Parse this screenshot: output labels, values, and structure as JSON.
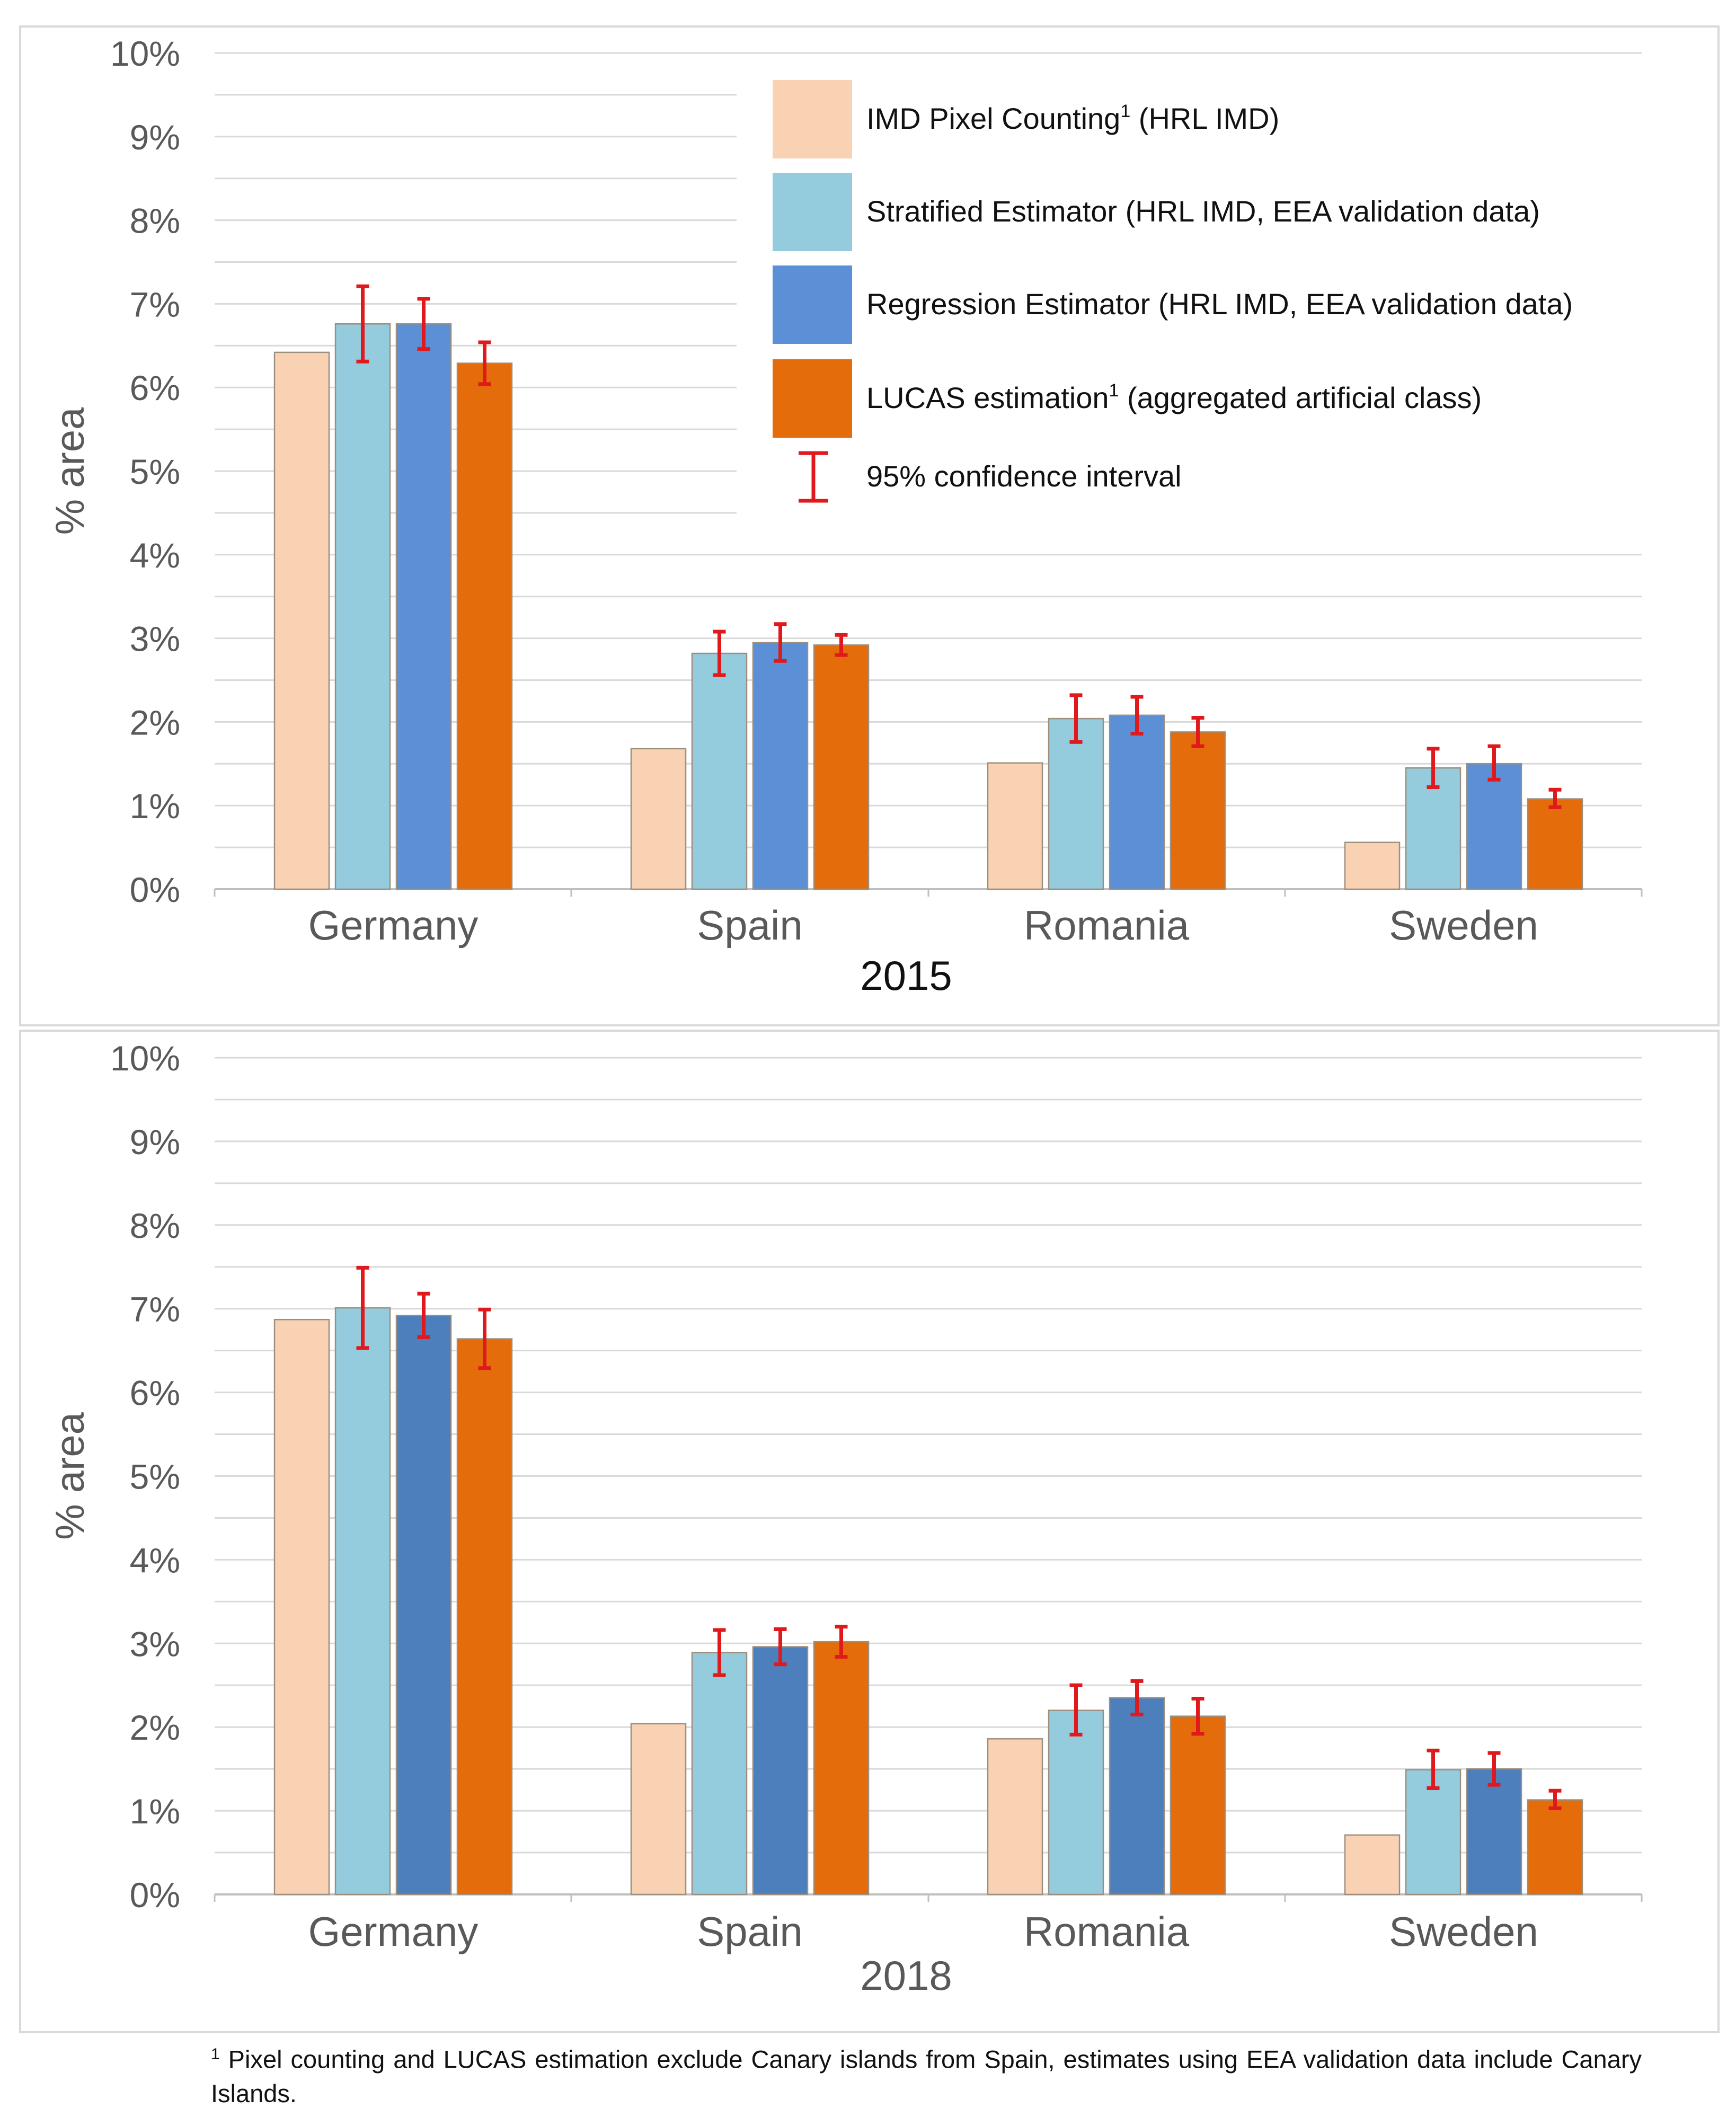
{
  "colors": {
    "imd": "#f9d2b3",
    "stratified": "#94cbdd",
    "regression_2015": "#5b8fd6",
    "regression_2018": "#4d7fbd",
    "lucas": "#e46c0a",
    "ci": "#e0191d",
    "grid": "#d9d9d9",
    "text": "#595959"
  },
  "legend": {
    "items": [
      {
        "label": "IMD Pixel Counting",
        "sup": "1",
        "suffix": " (HRL IMD)",
        "key": "imd"
      },
      {
        "label": "Stratified Estimator (HRL IMD, EEA validation data)",
        "sup": "",
        "suffix": "",
        "key": "stratified"
      },
      {
        "label": "Regression Estimator (HRL IMD, EEA validation data)",
        "sup": "",
        "suffix": "",
        "key": "regression_2015"
      },
      {
        "label": "LUCAS estimation",
        "sup": "1",
        "suffix": " (aggregated artificial class)",
        "key": "lucas"
      },
      {
        "label": "95% confidence interval",
        "sup": "",
        "suffix": "",
        "key": "ci"
      }
    ]
  },
  "chart_data": [
    {
      "type": "bar",
      "title": "2015",
      "ylabel": "% area",
      "ylim": [
        0,
        10
      ],
      "yticks": [
        "0%",
        "1%",
        "2%",
        "3%",
        "4%",
        "5%",
        "6%",
        "7%",
        "8%",
        "9%",
        "10%"
      ],
      "categories": [
        "Germany",
        "Spain",
        "Romania",
        "Sweden"
      ],
      "series": [
        {
          "name": "IMD Pixel Counting (HRL IMD)",
          "color_key": "imd",
          "values": [
            6.42,
            1.68,
            1.51,
            0.56
          ],
          "ci": null
        },
        {
          "name": "Stratified Estimator (HRL IMD, EEA validation data)",
          "color_key": "stratified",
          "values": [
            6.76,
            2.82,
            2.04,
            1.45
          ],
          "ci": [
            [
              6.31,
              7.21
            ],
            [
              2.56,
              3.08
            ],
            [
              1.76,
              2.32
            ],
            [
              1.22,
              1.68
            ]
          ]
        },
        {
          "name": "Regression Estimator (HRL IMD, EEA validation data)",
          "color_key": "regression_2015",
          "values": [
            6.76,
            2.95,
            2.08,
            1.5
          ],
          "ci": [
            [
              6.46,
              7.06
            ],
            [
              2.73,
              3.17
            ],
            [
              1.86,
              2.3
            ],
            [
              1.31,
              1.71
            ]
          ]
        },
        {
          "name": "LUCAS estimation (aggregated artificial class)",
          "color_key": "lucas",
          "values": [
            6.29,
            2.92,
            1.88,
            1.08
          ],
          "ci": [
            [
              6.04,
              6.54
            ],
            [
              2.8,
              3.04
            ],
            [
              1.71,
              2.05
            ],
            [
              0.98,
              1.19
            ]
          ]
        }
      ]
    },
    {
      "type": "bar",
      "title": "2018",
      "ylabel": "% area",
      "ylim": [
        0,
        10
      ],
      "yticks": [
        "0%",
        "1%",
        "2%",
        "3%",
        "4%",
        "5%",
        "6%",
        "7%",
        "8%",
        "9%",
        "10%"
      ],
      "categories": [
        "Germany",
        "Spain",
        "Romania",
        "Sweden"
      ],
      "series": [
        {
          "name": "IMD Pixel Counting (HRL IMD)",
          "color_key": "imd",
          "values": [
            6.87,
            2.04,
            1.86,
            0.71
          ],
          "ci": null
        },
        {
          "name": "Stratified Estimator (HRL IMD, EEA validation data)",
          "color_key": "stratified",
          "values": [
            7.01,
            2.89,
            2.2,
            1.49
          ],
          "ci": [
            [
              6.53,
              7.49
            ],
            [
              2.62,
              3.16
            ],
            [
              1.91,
              2.5
            ],
            [
              1.27,
              1.72
            ]
          ]
        },
        {
          "name": "Regression Estimator (HRL IMD, EEA validation data)",
          "color_key": "regression_2018",
          "values": [
            6.92,
            2.96,
            2.35,
            1.5
          ],
          "ci": [
            [
              6.66,
              7.18
            ],
            [
              2.75,
              3.17
            ],
            [
              2.15,
              2.55
            ],
            [
              1.31,
              1.69
            ]
          ]
        },
        {
          "name": "LUCAS estimation (aggregated artificial class)",
          "color_key": "lucas",
          "values": [
            6.64,
            3.02,
            2.13,
            1.13
          ],
          "ci": [
            [
              6.29,
              6.99
            ],
            [
              2.84,
              3.2
            ],
            [
              1.92,
              2.34
            ],
            [
              1.03,
              1.24
            ]
          ]
        }
      ]
    }
  ],
  "footnote": {
    "sup": "1",
    "text": " Pixel counting and  LUCAS estimation exclude Canary islands from Spain, estimates using EEA validation data include Canary Islands."
  }
}
